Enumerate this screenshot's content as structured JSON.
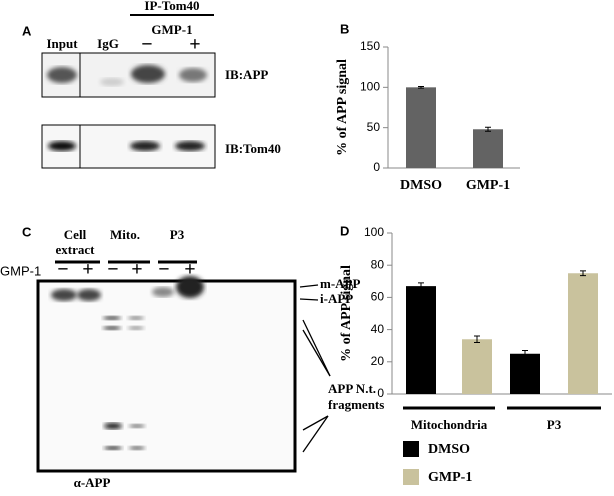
{
  "panel_a": {
    "label": "A",
    "header": "IP-Tom40",
    "treatment": "GMP-1",
    "lanes": [
      "Input",
      "IgG",
      "−",
      "+"
    ],
    "blots": [
      "IB:APP",
      "IB:Tom40"
    ]
  },
  "panel_c": {
    "label": "C",
    "fractions": [
      [
        "Cell",
        "extract"
      ],
      [
        "Mito."
      ],
      [
        "P3"
      ]
    ],
    "treatment": "GMP-1",
    "signs": [
      "−",
      "+",
      "−",
      "+",
      "−",
      "+"
    ],
    "bands": [
      "m-APP",
      "i-APP"
    ],
    "fragments": [
      "APP N.t.",
      "fragments"
    ],
    "antibody": "α-APP"
  },
  "chart_data": [
    {
      "type": "bar",
      "panel": "B",
      "y_label": "% of APP  signal",
      "categories": [
        "DMSO",
        "GMP-1"
      ],
      "values": [
        100,
        48
      ],
      "errors": [
        1,
        2.5
      ],
      "color": "#636363",
      "ylim": [
        0,
        150
      ],
      "yticks": [
        0,
        50,
        100,
        150
      ]
    },
    {
      "type": "grouped-bar",
      "panel": "D",
      "y_label": "% of APP  signal",
      "categories": [
        "Mitochondria",
        "P3"
      ],
      "series": [
        {
          "name": "DMSO",
          "color": "#000000",
          "values": [
            67,
            25
          ],
          "errors": [
            2,
            2
          ]
        },
        {
          "name": "GMP-1",
          "color": "#c9c29d",
          "values": [
            34,
            75
          ],
          "errors": [
            2,
            1.5
          ]
        }
      ],
      "ylim": [
        0,
        100
      ],
      "yticks": [
        0,
        20,
        40,
        60,
        80,
        100
      ],
      "legend": "bottom-left"
    }
  ]
}
